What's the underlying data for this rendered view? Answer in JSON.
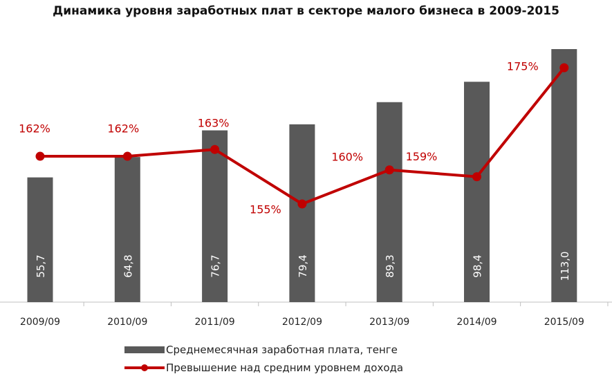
{
  "chart_data": {
    "type": "bar",
    "title": "Динамика уровня заработных плат в секторе малого бизнеса в 2009-2015",
    "categories": [
      "2009/09",
      "2010/09",
      "2011/09",
      "2012/09",
      "2013/09",
      "2014/09",
      "2015/09"
    ],
    "series": [
      {
        "name": "Среднемесячная заработная плата, тенге",
        "type": "bar",
        "values": [
          55.7,
          64.8,
          76.7,
          79.4,
          89.3,
          98.4,
          113.0
        ],
        "labels": [
          "55,7",
          "64,8",
          "76,7",
          "79,4",
          "89,3",
          "98,4",
          "113,0"
        ],
        "color": "#595959"
      },
      {
        "name": "Превышение над средним уровнем дохода",
        "type": "line",
        "values": [
          162,
          162,
          163,
          155,
          160,
          159,
          175
        ],
        "labels": [
          "162%",
          "162%",
          "163%",
          "155%",
          "160%",
          "159%",
          "175%"
        ],
        "color": "#c00000"
      }
    ],
    "y_bar_range": [
      0,
      113
    ],
    "y_line_range": [
      148,
      178
    ],
    "grid": false,
    "legend_position": "bottom"
  }
}
